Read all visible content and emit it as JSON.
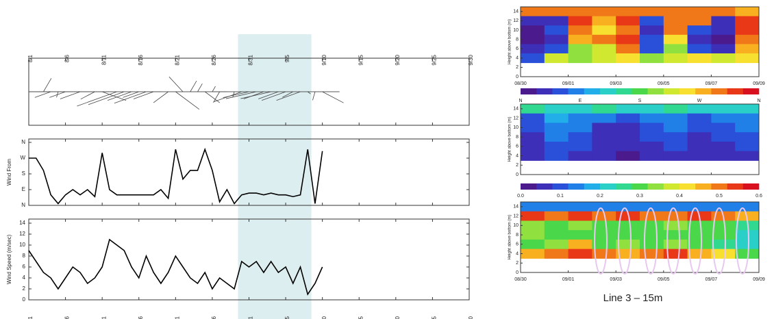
{
  "chart_data": [
    {
      "type": "wind",
      "x": [
        1,
        2,
        3,
        4,
        5,
        6,
        7,
        8,
        9,
        10,
        11,
        12,
        13,
        14,
        15,
        16,
        17,
        18,
        19,
        20,
        21,
        22,
        23,
        24,
        25,
        26,
        27,
        28,
        29,
        30,
        31,
        32,
        33,
        34,
        35,
        36,
        37,
        38,
        39,
        40,
        41
      ],
      "xlim": [
        1,
        61
      ],
      "xticks": [
        {
          "value": 1,
          "label": "8/1"
        },
        {
          "value": 6,
          "label": "8/6"
        },
        {
          "value": 11,
          "label": "8/11"
        },
        {
          "value": 16,
          "label": "8/16"
        },
        {
          "value": 21,
          "label": "8/21"
        },
        {
          "value": 26,
          "label": "8/26"
        },
        {
          "value": 31,
          "label": "8/31"
        },
        {
          "value": 36,
          "label": "9/5"
        },
        {
          "value": 41,
          "label": "9/10"
        },
        {
          "value": 46,
          "label": "9/15"
        },
        {
          "value": 51,
          "label": "9/20"
        },
        {
          "value": 56,
          "label": "9/25"
        },
        {
          "value": 61,
          "label": "9/30"
        }
      ],
      "highlight": [
        29.5,
        39.5
      ],
      "highlight_color": "#ddeef0",
      "series": [
        {
          "name": "Wind From",
          "color": "#000000",
          "values": [
            270,
            270,
            200,
            60,
            10,
            60,
            90,
            60,
            90,
            50,
            300,
            90,
            60,
            60,
            60,
            60,
            60,
            60,
            90,
            40,
            320,
            150,
            200,
            200,
            320,
            200,
            20,
            90,
            10,
            60,
            70,
            70,
            60,
            70,
            60,
            60,
            50,
            60,
            320,
            10,
            310
          ],
          "ylim": [
            0,
            360
          ],
          "yticks": [
            {
              "value": 0,
              "label": "N"
            },
            {
              "value": 90,
              "label": "E"
            },
            {
              "value": 180,
              "label": "S"
            },
            {
              "value": 270,
              "label": "W"
            },
            {
              "value": 360,
              "label": "N"
            }
          ]
        },
        {
          "name": "Wind Speed (m/sec)",
          "color": "#000000",
          "values": [
            9,
            7,
            5,
            4,
            2,
            4,
            6,
            5,
            3,
            4,
            6,
            11,
            10,
            9,
            6,
            4,
            8,
            5,
            3,
            5,
            8,
            6,
            4,
            3,
            5,
            2,
            4,
            3,
            2,
            7,
            6,
            7,
            5,
            7,
            5,
            6,
            3,
            6,
            1,
            3,
            6
          ],
          "ylim": [
            0,
            14
          ],
          "yticks": [
            0,
            2,
            4,
            6,
            8,
            10,
            12,
            14
          ]
        }
      ]
    },
    {
      "type": "heatmap",
      "ylabel": "Height above bottom (m)",
      "x": [
        0.5,
        1.5,
        2.5,
        3.5,
        4.5,
        5.5,
        6.5,
        7.5,
        8.5,
        9.5
      ],
      "y": [
        14,
        12,
        10,
        8,
        6,
        4
      ],
      "z": [
        [
          300,
          300,
          300,
          300,
          300,
          300,
          300,
          300,
          300,
          280
        ],
        [
          30,
          40,
          330,
          280,
          320,
          60,
          290,
          300,
          40,
          330
        ],
        [
          20,
          60,
          300,
          250,
          310,
          40,
          300,
          60,
          30,
          320
        ],
        [
          20,
          30,
          270,
          290,
          330,
          50,
          250,
          40,
          20,
          300
        ],
        [
          40,
          60,
          200,
          230,
          300,
          60,
          200,
          70,
          40,
          270
        ],
        [
          60,
          230,
          200,
          220,
          250,
          200,
          220,
          240,
          230,
          250
        ]
      ],
      "zlim": [
        0,
        360
      ],
      "xlim": [
        0,
        10
      ],
      "ylim": [
        0,
        15
      ],
      "xticks": [
        {
          "value": 0,
          "label": "08/30"
        },
        {
          "value": 2,
          "label": "09/01"
        },
        {
          "value": 4,
          "label": "09/03"
        },
        {
          "value": 6,
          "label": "09/05"
        },
        {
          "value": 8,
          "label": "09/07"
        },
        {
          "value": 10,
          "label": "09/09"
        }
      ],
      "yticks": [
        0,
        2,
        4,
        6,
        8,
        10,
        12,
        14
      ],
      "colorscale": [
        "#4b1a8c",
        "#3d2fb8",
        "#2a4fd8",
        "#2080e8",
        "#22aee8",
        "#2ad0c8",
        "#30d890",
        "#4ad84a",
        "#90e040",
        "#d0e830",
        "#f8e030",
        "#f8b020",
        "#f07818",
        "#e83818",
        "#d81020"
      ],
      "colorbar_ticks": [
        {
          "value": 0,
          "label": "N"
        },
        {
          "value": 90,
          "label": "E"
        },
        {
          "value": 180,
          "label": "S"
        },
        {
          "value": 270,
          "label": "W"
        },
        {
          "value": 360,
          "label": "N"
        }
      ]
    },
    {
      "type": "heatmap",
      "ylabel": "Height above bottom (m)",
      "x": [
        0.5,
        1.5,
        2.5,
        3.5,
        4.5,
        5.5,
        6.5,
        7.5,
        8.5,
        9.5
      ],
      "y": [
        14,
        12,
        10,
        8,
        6,
        4
      ],
      "z": [
        [
          0.25,
          0.22,
          0.2,
          0.24,
          0.22,
          0.2,
          0.24,
          0.22,
          0.2,
          0.2
        ],
        [
          0.1,
          0.18,
          0.15,
          0.12,
          0.08,
          0.12,
          0.15,
          0.1,
          0.12,
          0.15
        ],
        [
          0.08,
          0.15,
          0.12,
          0.06,
          0.05,
          0.1,
          0.12,
          0.08,
          0.1,
          0.12
        ],
        [
          0.06,
          0.12,
          0.1,
          0.05,
          0.04,
          0.08,
          0.1,
          0.06,
          0.08,
          0.1
        ],
        [
          0.05,
          0.1,
          0.08,
          0.04,
          0.04,
          0.06,
          0.08,
          0.05,
          0.06,
          0.08
        ],
        [
          0.04,
          0.08,
          0.06,
          0.04,
          0.03,
          0.05,
          0.06,
          0.04,
          0.05,
          0.06
        ]
      ],
      "zlim": [
        0,
        0.6
      ],
      "xlim": [
        0,
        10
      ],
      "ylim": [
        0,
        15
      ],
      "xticks": [
        0,
        2,
        4,
        6,
        8,
        10
      ],
      "xtick_labels": false,
      "yticks": [
        0,
        2,
        4,
        6,
        8,
        10,
        12,
        14
      ],
      "colorscale": [
        "#4b1a8c",
        "#3d2fb8",
        "#2a4fd8",
        "#2080e8",
        "#22aee8",
        "#2ad0c8",
        "#30d890",
        "#4ad84a",
        "#90e040",
        "#d0e830",
        "#f8e030",
        "#f8b020",
        "#f07818",
        "#e83818",
        "#d81020"
      ],
      "colorbar_ticks": [
        {
          "value": 0,
          "label": "0.0"
        },
        0.1,
        0.2,
        0.3,
        0.4,
        0.5,
        0.6
      ]
    },
    {
      "type": "heatmap",
      "ylabel": "Height above bottom (m)",
      "caption": "Line 3 – 15m",
      "x": [
        0.5,
        1.5,
        2.5,
        3.5,
        4.5,
        5.5,
        6.5,
        7.5,
        8.5,
        9.5
      ],
      "y": [
        14,
        12,
        10,
        8,
        6,
        4
      ],
      "z": [
        [
          0.12,
          0.12,
          0.12,
          0.12,
          0.12,
          0.12,
          0.12,
          0.12,
          0.12,
          0.12
        ],
        [
          0.55,
          0.5,
          0.55,
          0.5,
          0.55,
          0.5,
          0.5,
          0.55,
          0.5,
          0.45
        ],
        [
          0.35,
          0.3,
          0.32,
          0.3,
          0.28,
          0.3,
          0.32,
          0.3,
          0.28,
          0.25
        ],
        [
          0.32,
          0.3,
          0.3,
          0.28,
          0.3,
          0.28,
          0.3,
          0.3,
          0.28,
          0.22
        ],
        [
          0.3,
          0.35,
          0.45,
          0.3,
          0.35,
          0.3,
          0.32,
          0.3,
          0.25,
          0.2
        ],
        [
          0.45,
          0.5,
          0.55,
          0.5,
          0.45,
          0.5,
          0.55,
          0.45,
          0.4,
          0.3
        ]
      ],
      "zlim": [
        0,
        0.6
      ],
      "xlim": [
        0,
        10
      ],
      "ylim": [
        0,
        15
      ],
      "xticks": [
        {
          "value": 0,
          "label": "08/30"
        },
        {
          "value": 2,
          "label": "09/01"
        },
        {
          "value": 4,
          "label": "09/03"
        },
        {
          "value": 6,
          "label": "09/05"
        },
        {
          "value": 8,
          "label": "09/07"
        },
        {
          "value": 10,
          "label": "09/09"
        }
      ],
      "yticks": [
        0,
        2,
        4,
        6,
        8,
        10,
        12,
        14
      ],
      "colorscale": [
        "#4b1a8c",
        "#3d2fb8",
        "#2a4fd8",
        "#2080e8",
        "#22aee8",
        "#2ad0c8",
        "#30d890",
        "#4ad84a",
        "#90e040",
        "#d0e830",
        "#f8e030",
        "#f8b020",
        "#f07818",
        "#e83818",
        "#d81020"
      ]
    }
  ]
}
